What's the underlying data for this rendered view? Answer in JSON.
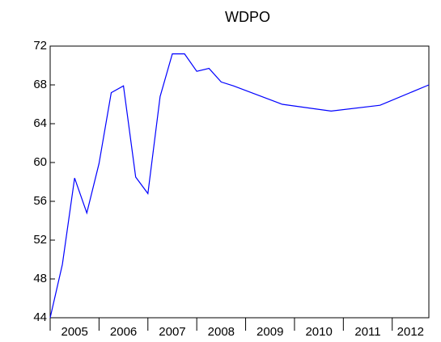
{
  "chart_data": {
    "type": "line",
    "title": "WDPO",
    "x": [
      2005,
      2005.25,
      2005.5,
      2005.75,
      2006,
      2006.25,
      2006.5,
      2006.75,
      2007,
      2007.25,
      2007.5,
      2007.75,
      2008,
      2008.25,
      2008.5,
      2008.75,
      2009.75,
      2010.75,
      2011.75,
      2012.75
    ],
    "series": [
      {
        "name": "WDPO",
        "color": "#0000ff",
        "values": [
          44.0,
          49.5,
          58.4,
          54.8,
          59.9,
          67.2,
          67.9,
          58.5,
          56.8,
          66.8,
          71.2,
          71.2,
          69.4,
          69.7,
          68.3,
          67.9,
          66.0,
          65.3,
          65.9,
          68.0
        ]
      }
    ],
    "xlim": [
      2005,
      2012.75
    ],
    "xticks": [
      2005,
      2006,
      2007,
      2008,
      2009,
      2010,
      2011,
      2012
    ],
    "ylim": [
      44,
      72
    ],
    "yticks": [
      44,
      48,
      52,
      56,
      60,
      64,
      68,
      72
    ]
  }
}
